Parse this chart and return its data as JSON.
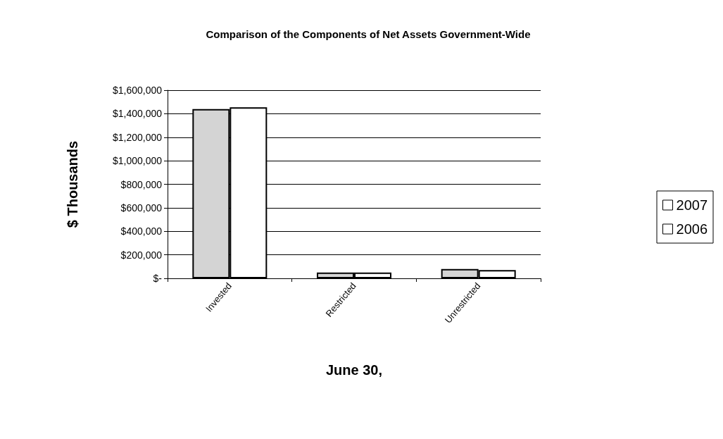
{
  "chart_data": {
    "type": "bar",
    "title": "Comparison of the Components of Net Assets Government-Wide",
    "xlabel": "June 30,",
    "ylabel": "$ Thousands",
    "categories": [
      "Invested",
      "Restricted",
      "Unrestricted"
    ],
    "series": [
      {
        "name": "2007",
        "color": "#d4d4d4",
        "values": [
          1440000,
          50000,
          80000
        ]
      },
      {
        "name": "2006",
        "color": "#ffffff",
        "values": [
          1455000,
          50000,
          70000
        ]
      }
    ],
    "ylim": [
      0,
      1600000
    ],
    "yticks": [
      {
        "value": 0,
        "label": "$-"
      },
      {
        "value": 200000,
        "label": "$200,000"
      },
      {
        "value": 400000,
        "label": "$400,000"
      },
      {
        "value": 600000,
        "label": "$600,000"
      },
      {
        "value": 800000,
        "label": "$800,000"
      },
      {
        "value": 1000000,
        "label": "$1,000,000"
      },
      {
        "value": 1200000,
        "label": "$1,200,000"
      },
      {
        "value": 1400000,
        "label": "$1,400,000"
      },
      {
        "value": 1600000,
        "label": "$1,600,000"
      }
    ],
    "grid": "y",
    "legend": "right"
  }
}
